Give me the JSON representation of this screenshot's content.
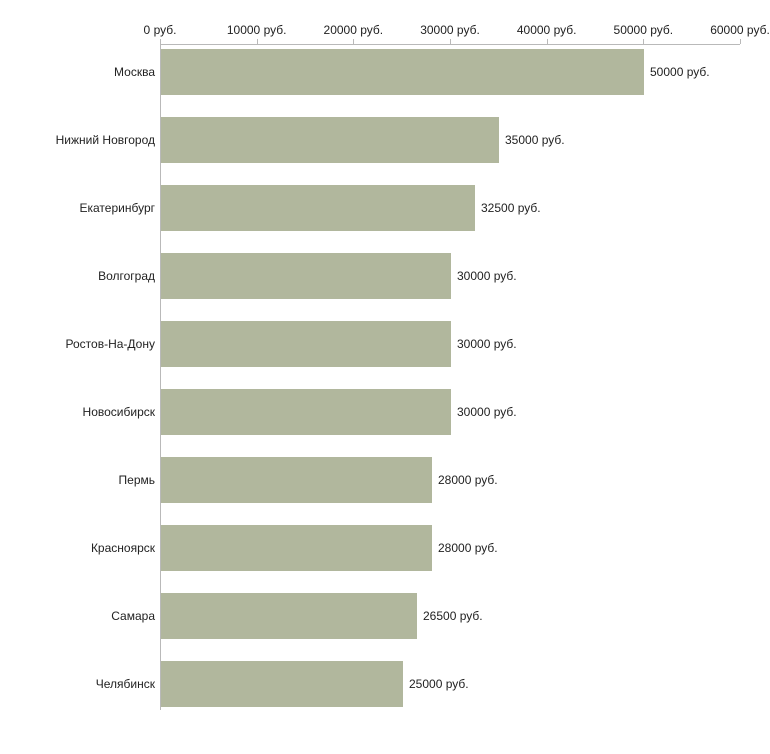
{
  "chart_data": {
    "type": "bar",
    "orientation": "horizontal",
    "title": "",
    "xlabel": "",
    "ylabel": "",
    "xlim": [
      0,
      60000
    ],
    "grid": false,
    "legend": "none",
    "bar_color": "#b1b79d",
    "axis_color": "#b9b9b9",
    "text_color": "#222222",
    "categories": [
      "Москва",
      "Нижний Новгород",
      "Екатеринбург",
      "Волгоград",
      "Ростов-На-Дону",
      "Новосибирск",
      "Пермь",
      "Красноярск",
      "Самара",
      "Челябинск"
    ],
    "values": [
      50000,
      35000,
      32500,
      30000,
      30000,
      30000,
      28000,
      28000,
      26500,
      25000
    ],
    "value_labels": [
      "50000 руб.",
      "35000 руб.",
      "32500 руб.",
      "30000 руб.",
      "30000 руб.",
      "30000 руб.",
      "28000 руб.",
      "28000 руб.",
      "26500 руб.",
      "25000 руб."
    ],
    "x_ticks": [
      0,
      10000,
      20000,
      30000,
      40000,
      50000,
      60000
    ],
    "x_tick_labels": [
      "0 руб.",
      "10000 руб.",
      "20000 руб.",
      "30000 руб.",
      "40000 руб.",
      "50000 руб.",
      "60000 руб."
    ]
  }
}
